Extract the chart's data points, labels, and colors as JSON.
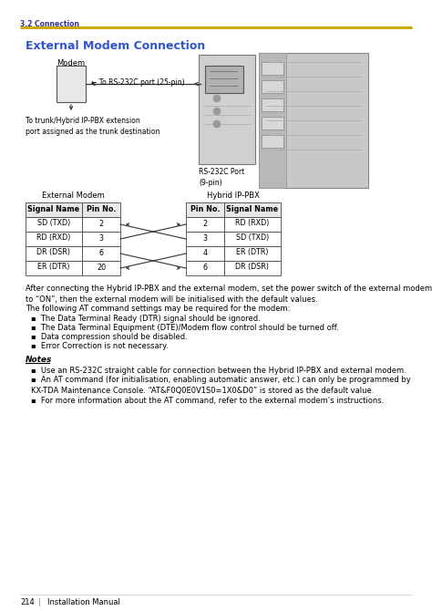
{
  "title_section": "3.2 Connection",
  "section_title": "External Modem Connection",
  "section_title_color": "#3355cc",
  "divider_color": "#ccaa00",
  "background_color": "#ffffff",
  "diagram_label_modem": "Modem",
  "diagram_label_cable": "← To RS-232C port (25-pin)",
  "diagram_label_trunk": "To trunk/Hybrid IP-PBX extension\nport assigned as the trunk destination",
  "diagram_label_rs232c": "RS-232C Port\n(9-pin)",
  "table_left_header": "External Modem",
  "table_right_header": "Hybrid IP-PBX",
  "table_left_cols": [
    "Signal Name",
    "Pin No."
  ],
  "table_right_cols": [
    "Pin No.",
    "Signal Name"
  ],
  "table_left_data": [
    [
      "SD (TXD)",
      "2"
    ],
    [
      "RD (RXD)",
      "3"
    ],
    [
      "DR (DSR)",
      "6"
    ],
    [
      "ER (DTR)",
      "20"
    ]
  ],
  "table_right_data": [
    [
      "2",
      "RD (RXD)"
    ],
    [
      "3",
      "SD (TXD)"
    ],
    [
      "4",
      "ER (DTR)"
    ],
    [
      "6",
      "DR (DSR)"
    ]
  ],
  "para1": "After connecting the Hybrid IP-PBX and the external modem, set the power switch of the external modem\nto “ON”, then the external modem will be initialised with the default values.",
  "para2": "The following AT command settings may be required for the modem:",
  "bullets": [
    "The Data Terminal Ready (DTR) signal should be ignored.",
    "The Data Terminal Equipment (DTE)/Modem flow control should be turned off.",
    "Data compression should be disabled.",
    "Error Correction is not necessary."
  ],
  "notes_title": "Notes",
  "notes_bullets": [
    "Use an RS-232C straight cable for connection between the Hybrid IP-PBX and external modem.",
    "An AT command (for initialisation, enabling automatic answer, etc.) can only be programmed by\nKX-TDA Maintenance Console. “AT&F0Q0E0V1S0=1X0&D0” is stored as the default value.",
    "For more information about the AT command, refer to the external modem’s instructions."
  ],
  "footer_page": "214",
  "footer_text": "Installation Manual"
}
